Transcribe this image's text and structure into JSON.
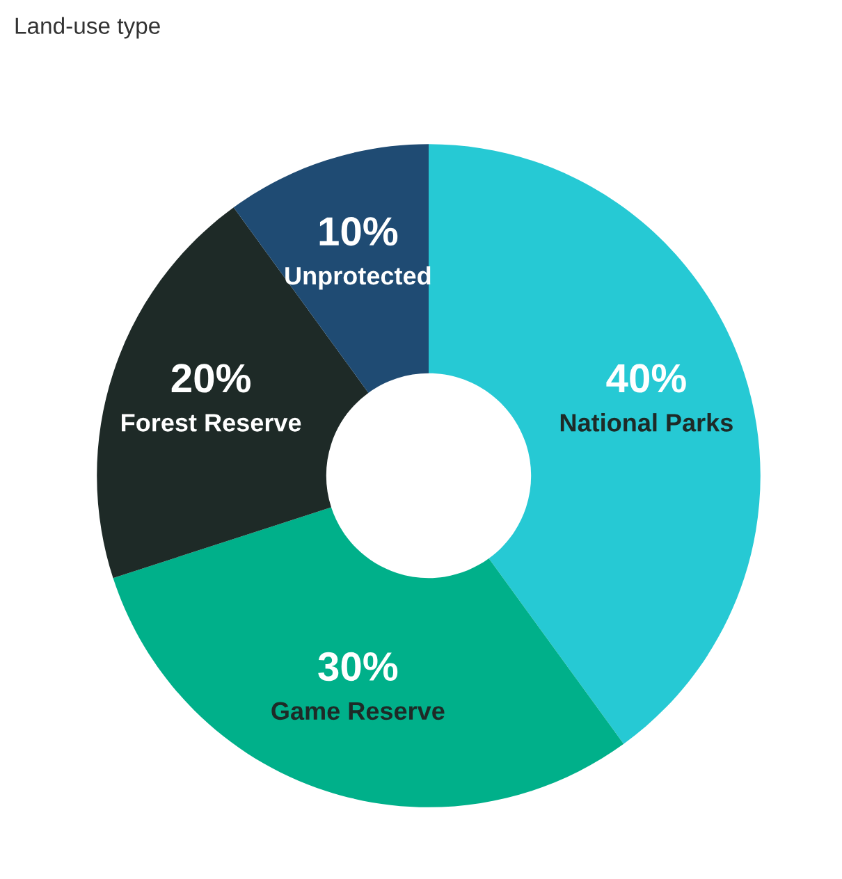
{
  "chart_data": {
    "type": "donut",
    "title": "Land-use type",
    "categories": [
      "National Parks",
      "Game Reserve",
      "Forest Reserve",
      "Unprotected"
    ],
    "values": [
      40,
      30,
      20,
      10
    ],
    "colors": [
      "#26c9d4",
      "#00b08a",
      "#1e2a27",
      "#1f4b73"
    ],
    "value_labels": [
      "40%",
      "30%",
      "20%",
      "10%"
    ]
  }
}
